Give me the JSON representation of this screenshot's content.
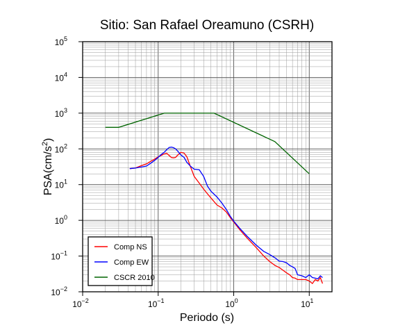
{
  "chart_data": {
    "type": "line",
    "title": "Sitio: San Rafael Oreamuno (CSRH)",
    "xlabel": "Periodo (s)",
    "ylabel": "PSA(cm/s²)",
    "x_scale": "log",
    "y_scale": "log",
    "xlim": [
      0.01,
      20
    ],
    "ylim": [
      0.01,
      100000
    ],
    "grid": true,
    "legend_position": "bottom-left",
    "x_ticks": [
      {
        "base": "10",
        "exp": "−2"
      },
      {
        "base": "10",
        "exp": "−1"
      },
      {
        "base": "10",
        "exp": "0"
      },
      {
        "base": "10",
        "exp": "1"
      }
    ],
    "y_ticks": [
      {
        "base": "10",
        "exp": "−2"
      },
      {
        "base": "10",
        "exp": "−1"
      },
      {
        "base": "10",
        "exp": "0"
      },
      {
        "base": "10",
        "exp": "1"
      },
      {
        "base": "10",
        "exp": "2"
      },
      {
        "base": "10",
        "exp": "3"
      },
      {
        "base": "10",
        "exp": "4"
      },
      {
        "base": "10",
        "exp": "5"
      }
    ],
    "series": [
      {
        "name": "Comp NS",
        "color": "#ff0000",
        "x": [
          0.042,
          0.05,
          0.06,
          0.07,
          0.08,
          0.09,
          0.1,
          0.11,
          0.12,
          0.13,
          0.14,
          0.15,
          0.16,
          0.17,
          0.18,
          0.2,
          0.22,
          0.24,
          0.27,
          0.3,
          0.35,
          0.4,
          0.45,
          0.5,
          0.6,
          0.7,
          0.8,
          0.9,
          1.0,
          1.2,
          1.5,
          2.0,
          2.5,
          3.0,
          3.5,
          4.0,
          4.5,
          5.0,
          5.5,
          6.0,
          6.5,
          7.0,
          8.0,
          9.0,
          10.0,
          11.0,
          12.0,
          13.0,
          14.0,
          15.0
        ],
        "y": [
          28,
          29,
          34,
          38,
          45,
          52,
          60,
          66,
          72,
          75,
          65,
          57,
          56,
          58,
          66,
          80,
          76,
          60,
          30,
          17,
          11,
          7.5,
          5.5,
          4.2,
          2.7,
          2.2,
          1.7,
          1.2,
          0.9,
          0.55,
          0.32,
          0.17,
          0.1,
          0.07,
          0.055,
          0.048,
          0.04,
          0.034,
          0.03,
          0.025,
          0.024,
          0.022,
          0.022,
          0.022,
          0.02,
          0.017,
          0.022,
          0.02,
          0.025,
          0.017
        ]
      },
      {
        "name": "Comp EW",
        "color": "#0000ff",
        "x": [
          0.042,
          0.05,
          0.06,
          0.07,
          0.08,
          0.09,
          0.1,
          0.11,
          0.12,
          0.13,
          0.14,
          0.15,
          0.16,
          0.17,
          0.18,
          0.2,
          0.22,
          0.24,
          0.27,
          0.3,
          0.35,
          0.4,
          0.45,
          0.5,
          0.6,
          0.7,
          0.8,
          0.9,
          1.0,
          1.2,
          1.5,
          2.0,
          2.5,
          3.0,
          3.5,
          4.0,
          4.5,
          5.0,
          5.5,
          6.0,
          6.5,
          7.0,
          8.0,
          9.0,
          10.0,
          11.0,
          12.0,
          13.0,
          14.0,
          15.0
        ],
        "y": [
          28,
          29,
          31,
          33,
          40,
          48,
          58,
          70,
          80,
          95,
          110,
          112,
          108,
          100,
          88,
          67,
          58,
          42,
          32,
          27,
          26,
          17,
          9,
          6.5,
          4.5,
          3.0,
          2.0,
          1.3,
          0.95,
          0.6,
          0.36,
          0.2,
          0.135,
          0.11,
          0.09,
          0.072,
          0.07,
          0.065,
          0.055,
          0.05,
          0.045,
          0.03,
          0.028,
          0.025,
          0.03,
          0.025,
          0.024,
          0.023,
          0.028,
          0.025
        ]
      },
      {
        "name": "CSCR 2010",
        "color": "#006400",
        "x": [
          0.02,
          0.03,
          0.12,
          0.55,
          3.5,
          10.0
        ],
        "y": [
          400,
          400,
          1000,
          1000,
          160,
          20
        ]
      }
    ]
  }
}
